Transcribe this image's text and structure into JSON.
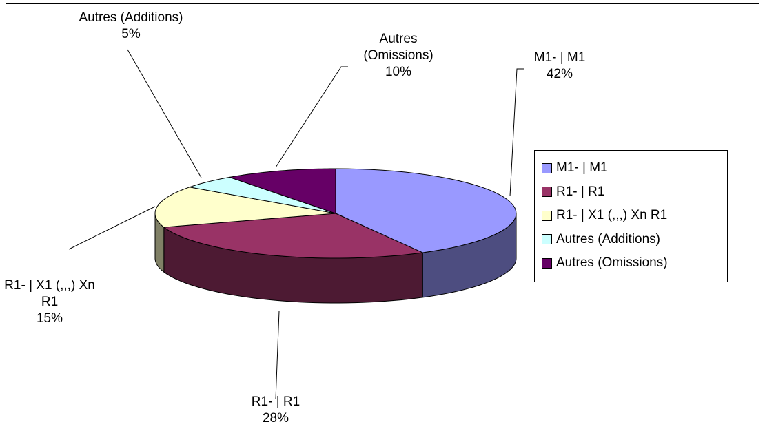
{
  "chart_data": {
    "type": "pie3d",
    "categories": [
      "M1- | M1",
      "R1- | R1",
      "R1- | X1 (,,,) Xn R1",
      "Autres (Additions)",
      "Autres (Omissions)"
    ],
    "values": [
      42,
      28,
      15,
      5,
      10
    ],
    "value_labels": [
      "42%",
      "28%",
      "15%",
      "5%",
      "10%"
    ],
    "colors": [
      "#9999ff",
      "#993366",
      "#ffffcc",
      "#ccffff",
      "#660066"
    ],
    "legend": "right"
  }
}
